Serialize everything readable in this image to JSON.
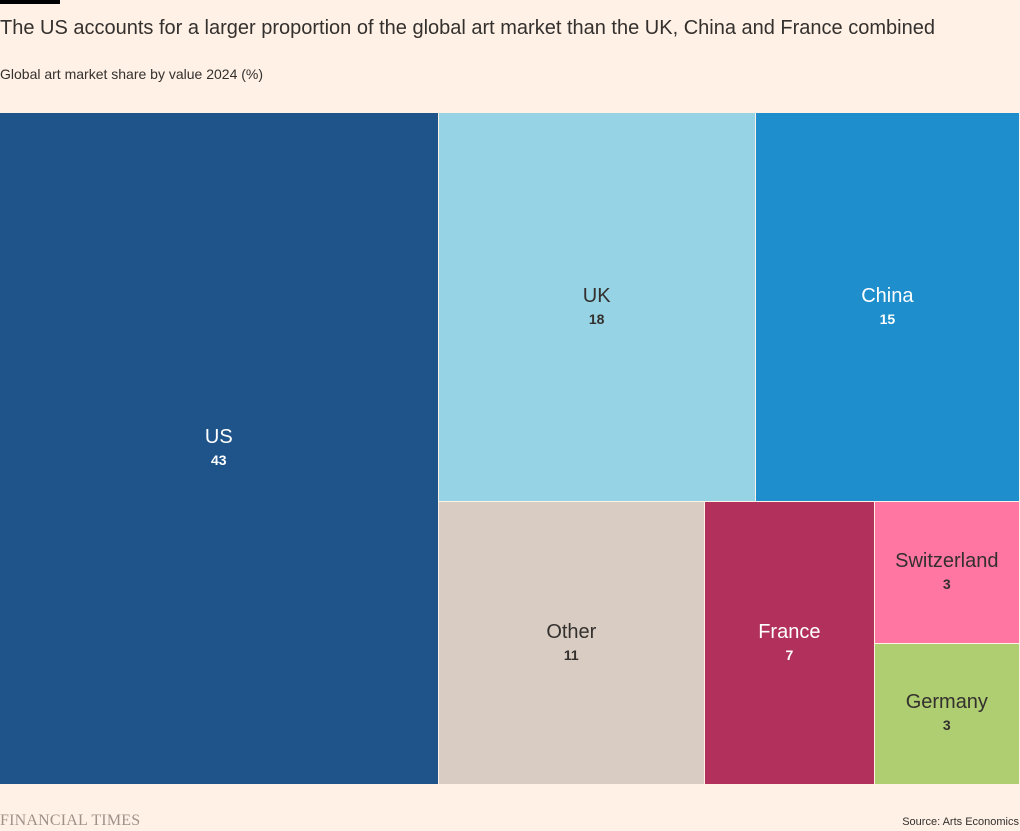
{
  "header": {
    "title": "The US accounts for a larger proportion of the global art market than the UK, China and France combined",
    "subtitle": "Global art market share by value 2024 (%)"
  },
  "footer": {
    "brand": "FINANCIAL TIMES",
    "source": "Source: Arts Economics"
  },
  "chart_data": {
    "type": "treemap",
    "title": "The US accounts for a larger proportion of the global art market than the UK, China and France combined",
    "subtitle": "Global art market share by value 2024 (%)",
    "unit": "%",
    "items": [
      {
        "label": "US",
        "value": 43,
        "color": "#1f548a",
        "text_color": "#ffffff"
      },
      {
        "label": "UK",
        "value": 18,
        "color": "#96d3e4",
        "text_color": "#33302e"
      },
      {
        "label": "China",
        "value": 15,
        "color": "#1e8ecd",
        "text_color": "#ffffff"
      },
      {
        "label": "Other",
        "value": 11,
        "color": "#d9ccc3",
        "text_color": "#33302e"
      },
      {
        "label": "France",
        "value": 7,
        "color": "#b1305c",
        "text_color": "#ffffff"
      },
      {
        "label": "Switzerland",
        "value": 3,
        "color": "#ff76a3",
        "text_color": "#33302e"
      },
      {
        "label": "Germany",
        "value": 3,
        "color": "#afcd71",
        "text_color": "#33302e"
      }
    ]
  }
}
